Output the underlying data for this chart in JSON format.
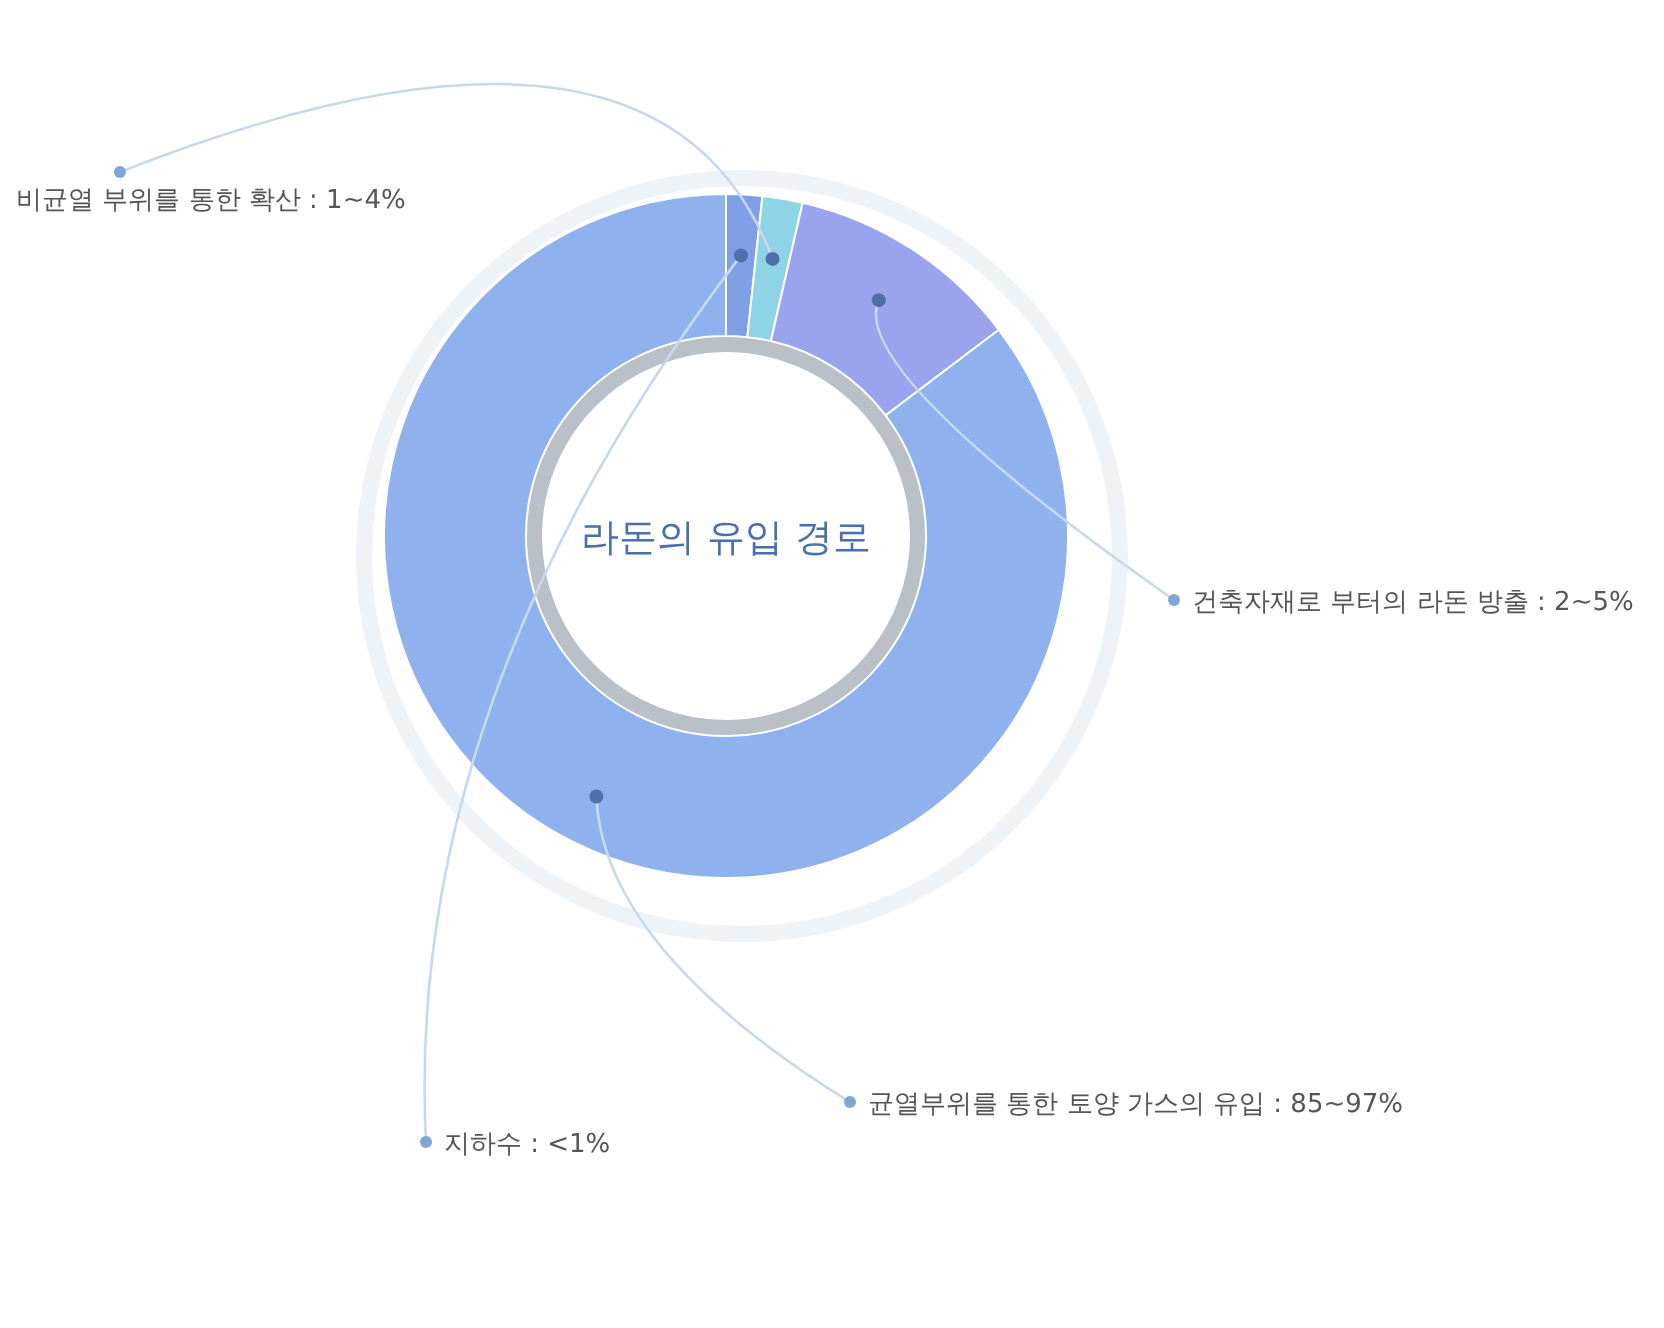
{
  "chart_data": {
    "type": "donut",
    "title": "라돈의 유입 경로",
    "categories": [
      "지하수 : <1%",
      "비균열 부위를 통한 확산 : 1~4%",
      "건축자재로 부터의 라돈 방출 : 2~5%",
      "균열부위를 통한 토양 가스의 유입 : 85~97%"
    ],
    "values": [
      1.7,
      1.9,
      11.1,
      85.3
    ],
    "colors": [
      "#7f9fe6",
      "#8fd3e6",
      "#9aa3ee",
      "#8fb2ee"
    ]
  }
}
